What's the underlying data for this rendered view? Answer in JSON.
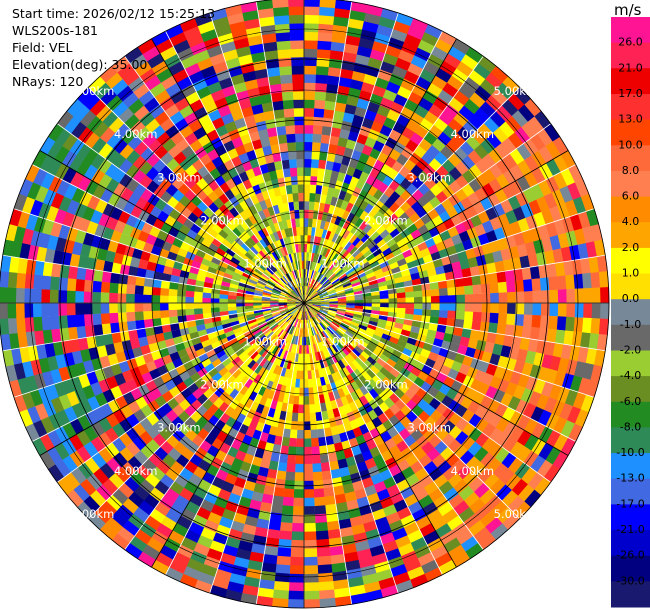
{
  "info": {
    "start_time": "Start time: 2026/02/12 15:25:13",
    "station": "WLS200s-181",
    "field": "Field: VEL",
    "elevation": "Elevation(deg): 35.00",
    "nrays": "NRays: 120"
  },
  "colorbar": {
    "unit": "m/s",
    "ticks": [
      "26.0",
      "21.0",
      "17.0",
      "13.0",
      "10.0",
      "8.0",
      "6.0",
      "4.0",
      "2.0",
      "1.0",
      "0.0",
      "-1.0",
      "-2.0",
      "-4.0",
      "-6.0",
      "-8.0",
      "-10.0",
      "-13.0",
      "-17.0",
      "-21.0",
      "-26.0",
      "-30.0"
    ],
    "colors": [
      "#ff1493",
      "#ff2255",
      "#ee0000",
      "#ff3030",
      "#ff4500",
      "#ff6a3a",
      "#ff7f50",
      "#ff8c00",
      "#ffa500",
      "#ffff00",
      "#ffe000",
      "#778899",
      "#696969",
      "#9acd32",
      "#6b8e23",
      "#228b22",
      "#2e8b57",
      "#1e90ff",
      "#4169e1",
      "#0000ff",
      "#0000cd",
      "#000080",
      "#191970"
    ]
  },
  "chart_data": {
    "type": "heatmap",
    "projection": "polar (PPI)",
    "field": "VEL",
    "unit": "m/s",
    "nrays": 120,
    "range_ring_labels": [
      "1.00km",
      "2.00km",
      "3.00km",
      "4.00km",
      "5.00km"
    ],
    "ring_label_angles_deg": [
      45,
      135,
      225,
      315
    ]
  }
}
